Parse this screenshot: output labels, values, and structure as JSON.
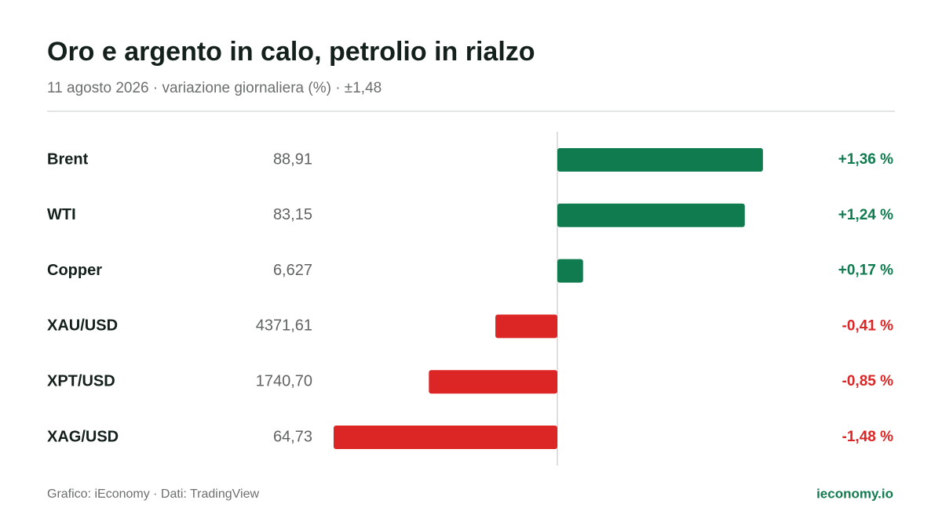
{
  "chart_data": {
    "type": "diverging-bar",
    "title": "Oro e argento in calo, petrolio in rialzo",
    "subtitle": "11 agosto 2026 · variazione giornaliera (%) · ±1,48",
    "categories": [
      "Brent",
      "WTI",
      "Copper",
      "XAU/USD",
      "XPT/USD",
      "XAG/USD"
    ],
    "prices": [
      "88,91",
      "83,15",
      "6,627",
      "4371,61",
      "1740,70",
      "64,73"
    ],
    "values": [
      1.36,
      1.24,
      0.17,
      -0.41,
      -0.85,
      -1.48
    ],
    "value_labels": [
      "+1,36 %",
      "+1,24 %",
      "+0,17 %",
      "-0,41 %",
      "-0,85 %",
      "-1,48 %"
    ],
    "xlim": [
      -1.48,
      1.48
    ],
    "positive_color": "#0f7b4f",
    "negative_color": "#dc2626",
    "source": "Grafico: iEconomy · Dati: TradingView",
    "brand": "ieconomy.io"
  }
}
